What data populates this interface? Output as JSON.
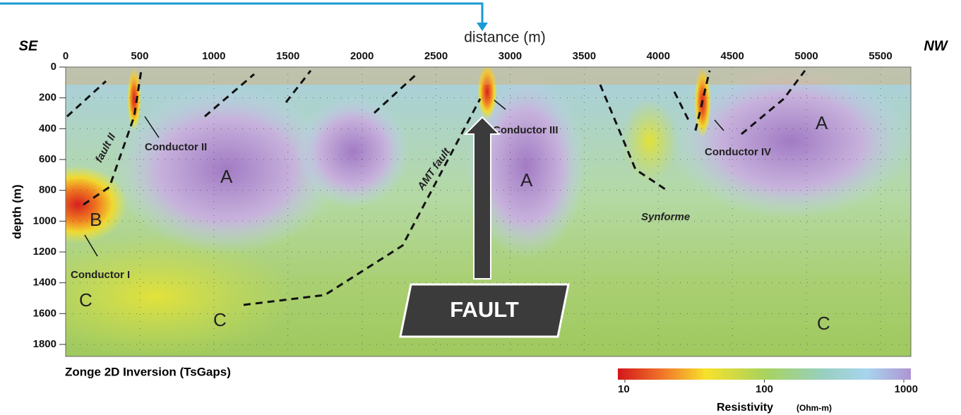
{
  "header": {
    "left_end": "SE",
    "right_end": "NW",
    "x_label": "distance (m)",
    "y_label": "depth (m)"
  },
  "x_ticks": [
    0,
    500,
    1000,
    1500,
    2000,
    2500,
    3000,
    3500,
    4000,
    4500,
    5000,
    5500
  ],
  "y_ticks": [
    0,
    200,
    400,
    600,
    800,
    1000,
    1200,
    1400,
    1600,
    1800
  ],
  "footer": "Zonge 2D Inversion (TsGaps)",
  "colorbar": {
    "title": "Resistivity",
    "unit": "(Ohm-m)",
    "ticks": [
      10,
      100,
      1000
    ]
  },
  "callout": "FAULT",
  "annotations": [
    "fault II",
    "Conductor II",
    "A",
    "B",
    "Conductor I",
    "C",
    "C",
    "AMT fault",
    "Conductor III",
    "A",
    "Synforme",
    "Conductor IV",
    "A",
    "C"
  ]
}
